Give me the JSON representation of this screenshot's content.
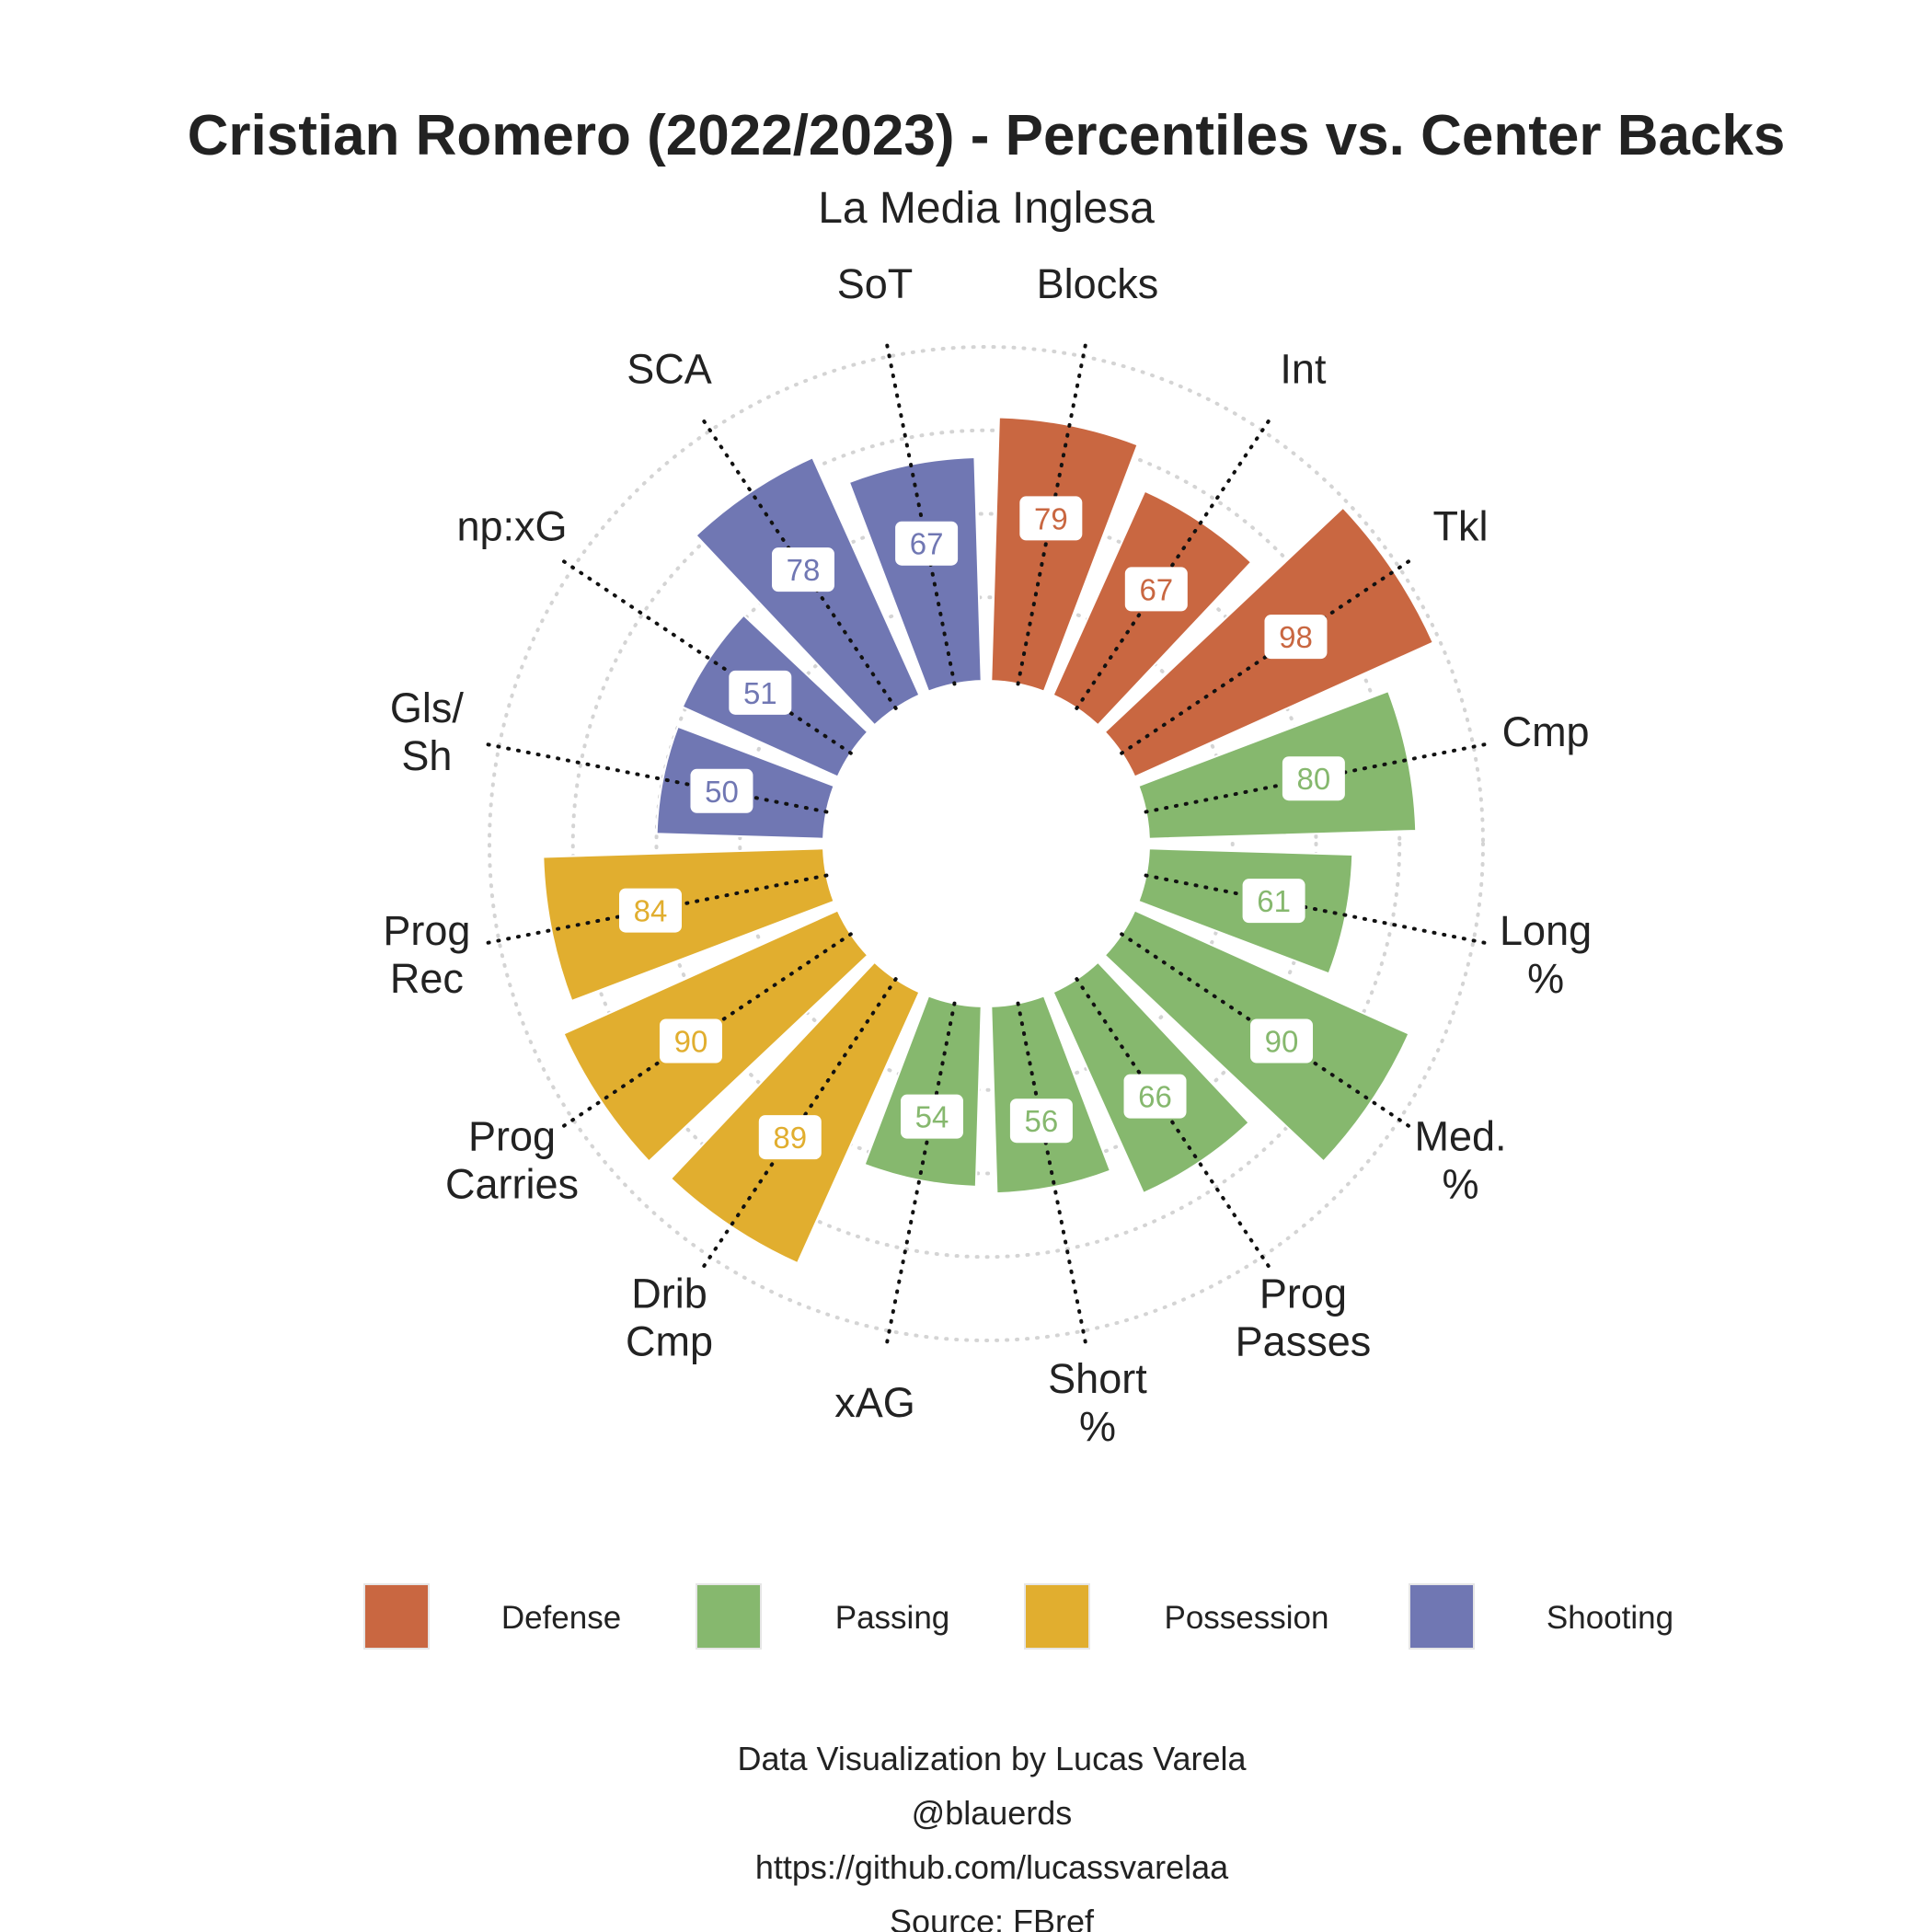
{
  "chart_data": {
    "type": "polar-bar",
    "title": "Cristian Romero (2022/2023) - Percentiles vs. Center Backs",
    "subtitle": "La Media Inglesa",
    "rlim": [
      0,
      100
    ],
    "categories": [
      {
        "label": "Blocks",
        "value": 79,
        "group": "Defense"
      },
      {
        "label": "Int",
        "value": 67,
        "group": "Defense"
      },
      {
        "label": "Tkl",
        "value": 98,
        "group": "Defense"
      },
      {
        "label": "Cmp",
        "value": 80,
        "group": "Passing"
      },
      {
        "label": "Long\n%",
        "value": 61,
        "group": "Passing"
      },
      {
        "label": "Med.\n%",
        "value": 90,
        "group": "Passing"
      },
      {
        "label": "Prog\nPasses",
        "value": 66,
        "group": "Passing"
      },
      {
        "label": "Short\n%",
        "value": 56,
        "group": "Passing"
      },
      {
        "label": "xAG",
        "value": 54,
        "group": "Passing"
      },
      {
        "label": "Drib\nCmp",
        "value": 89,
        "group": "Possession"
      },
      {
        "label": "Prog\nCarries",
        "value": 90,
        "group": "Possession"
      },
      {
        "label": "Prog\nRec",
        "value": 84,
        "group": "Possession"
      },
      {
        "label": "Gls/\nSh",
        "value": 50,
        "group": "Shooting"
      },
      {
        "label": "np:xG",
        "value": 51,
        "group": "Shooting"
      },
      {
        "label": "SCA",
        "value": 78,
        "group": "Shooting"
      },
      {
        "label": "SoT",
        "value": 67,
        "group": "Shooting"
      }
    ],
    "legend": {
      "placement": "bottom",
      "entries": [
        {
          "name": "Defense",
          "color": "#C96741"
        },
        {
          "name": "Passing",
          "color": "#86B86E"
        },
        {
          "name": "Possession",
          "color": "#E1AE2F"
        },
        {
          "name": "Shooting",
          "color": "#7077B3"
        }
      ]
    },
    "grid": true
  },
  "caption": [
    "Data Visualization by Lucas Varela",
    "@blauerds",
    "https://github.com/lucassvarelaa",
    "Source: FBref"
  ]
}
